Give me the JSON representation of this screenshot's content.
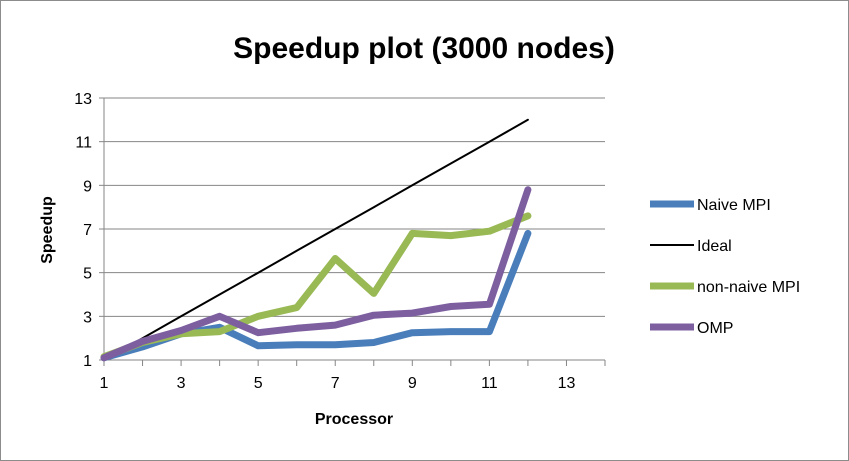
{
  "chart_data": {
    "type": "line",
    "title": "Speedup plot (3000 nodes)",
    "xlabel": "Processor",
    "ylabel": "Speedup",
    "xlim": [
      1,
      14
    ],
    "ylim": [
      1,
      13
    ],
    "x_ticks": [
      1,
      3,
      5,
      7,
      9,
      11,
      13
    ],
    "y_ticks": [
      1,
      3,
      5,
      7,
      9,
      11,
      13
    ],
    "grid": "horizontal",
    "legend_position": "right",
    "x": [
      1,
      2,
      3,
      4,
      5,
      6,
      7,
      8,
      9,
      10,
      11,
      12
    ],
    "series": [
      {
        "name": "Naive MPI",
        "color": "#4a7ebb",
        "width": "thick",
        "values": [
          1.1,
          1.6,
          2.2,
          2.5,
          1.65,
          1.7,
          1.7,
          1.8,
          2.25,
          2.3,
          2.3,
          6.8
        ]
      },
      {
        "name": "Ideal",
        "color": "#000000",
        "width": "thin",
        "values": [
          1,
          2,
          3,
          4,
          5,
          6,
          7,
          8,
          9,
          10,
          11,
          12
        ]
      },
      {
        "name": "non-naive MPI",
        "color": "#98b954",
        "width": "thick",
        "values": [
          1.15,
          1.8,
          2.2,
          2.3,
          3.0,
          3.4,
          5.65,
          4.05,
          6.8,
          6.7,
          6.9,
          7.6
        ]
      },
      {
        "name": "OMP",
        "color": "#7d5fa0",
        "width": "thick",
        "values": [
          1.1,
          1.85,
          2.35,
          3.0,
          2.25,
          2.45,
          2.6,
          3.05,
          3.15,
          3.45,
          3.55,
          8.8
        ]
      }
    ]
  }
}
